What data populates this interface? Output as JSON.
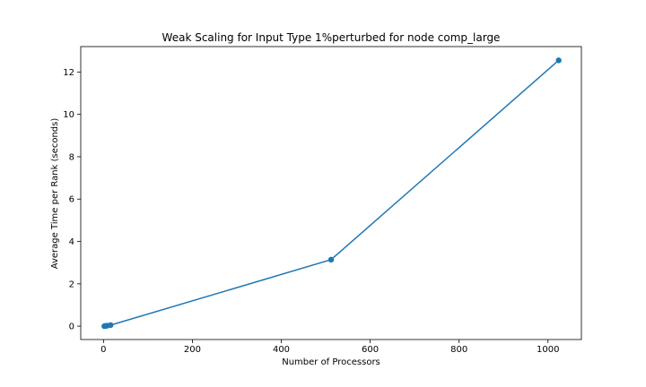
{
  "chart_data": {
    "type": "line",
    "title": "Weak Scaling for Input Type 1%perturbed for node comp_large",
    "xlabel": "Number of Processors",
    "ylabel": "Average Time per Rank (seconds)",
    "xlim": [
      -51.15,
      1075.15
    ],
    "ylim": [
      -0.63,
      13.2
    ],
    "xticks": [
      0,
      200,
      400,
      600,
      800,
      1000
    ],
    "yticks": [
      0,
      2,
      4,
      6,
      8,
      10,
      12
    ],
    "grid": false,
    "series": [
      {
        "x": [
          2,
          4,
          8,
          16,
          512,
          1024
        ],
        "y": [
          0.0,
          0.01,
          0.02,
          0.05,
          3.14,
          12.55
        ],
        "color": "#1f77b4",
        "marker": "circle"
      }
    ]
  }
}
